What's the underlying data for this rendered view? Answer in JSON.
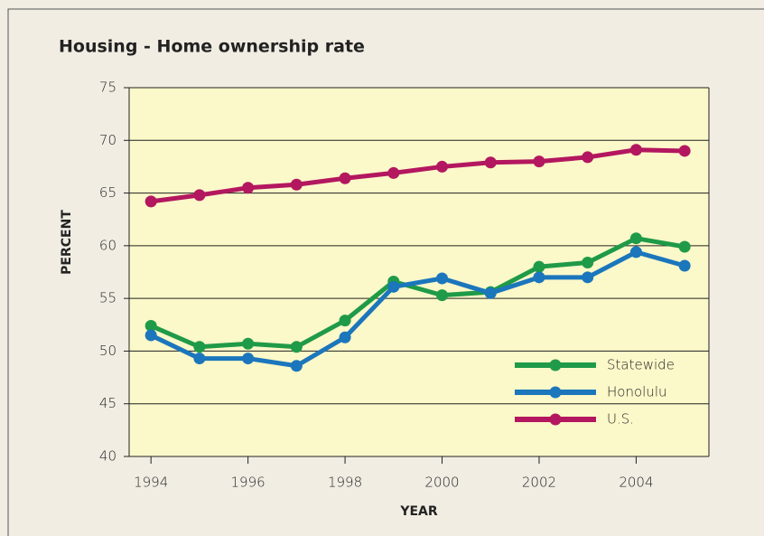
{
  "chart_data": {
    "type": "line",
    "title": "Housing - Home ownership rate",
    "x_label": "YEAR",
    "y_label": "PERCENT",
    "x": [
      1994,
      1995,
      1996,
      1997,
      1998,
      1999,
      2000,
      2001,
      2002,
      2003,
      2004,
      2005
    ],
    "series": [
      {
        "name": "Statewide",
        "color": "#1f9a48",
        "values": [
          52.4,
          50.4,
          50.7,
          50.4,
          52.9,
          56.6,
          55.3,
          55.6,
          58.0,
          58.4,
          60.7,
          59.9
        ]
      },
      {
        "name": "Honolulu",
        "color": "#1b76bc",
        "values": [
          51.5,
          49.3,
          49.3,
          48.6,
          51.3,
          56.1,
          56.9,
          55.5,
          57.0,
          57.0,
          59.4,
          58.1
        ]
      },
      {
        "name": "U.S.",
        "color": "#b3175f",
        "values": [
          64.2,
          64.8,
          65.5,
          65.8,
          66.4,
          66.9,
          67.5,
          67.9,
          68.0,
          68.4,
          69.1,
          69.0
        ]
      }
    ],
    "xlim": [
      1993.55,
      2005.5
    ],
    "xticks": [
      1994,
      1996,
      1998,
      2000,
      2002,
      2004
    ],
    "ylim": [
      40,
      75
    ],
    "yticks": [
      40,
      45,
      50,
      55,
      60,
      65,
      70,
      75
    ],
    "grid": true,
    "legend": "lower right"
  }
}
